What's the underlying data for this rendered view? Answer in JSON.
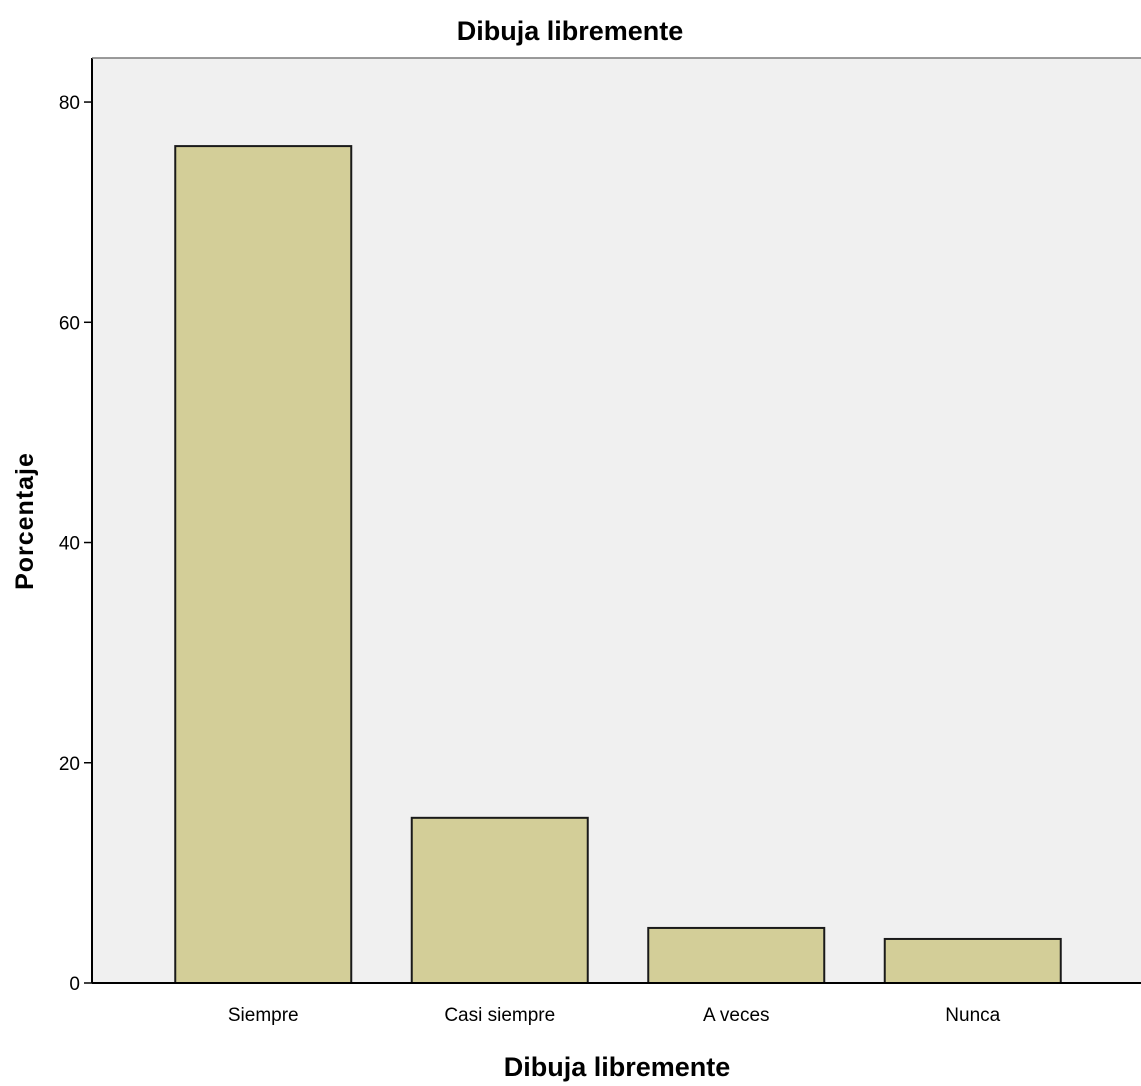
{
  "chart_data": {
    "type": "bar",
    "title": "Dibuja libremente",
    "xlabel": "Dibuja libremente",
    "ylabel": "Porcentaje",
    "categories": [
      "Siempre",
      "Casi siempre",
      "A veces",
      "Nunca"
    ],
    "values": [
      76,
      15,
      5,
      4
    ],
    "ylim": [
      0,
      84
    ],
    "yticks": [
      0,
      20,
      40,
      60,
      80
    ],
    "grid": false,
    "colors": {
      "bar_fill": "#d3ce98",
      "bar_stroke": "#1a1a1a",
      "plot_background": "#f0f0f0",
      "axis": "#000000"
    }
  }
}
